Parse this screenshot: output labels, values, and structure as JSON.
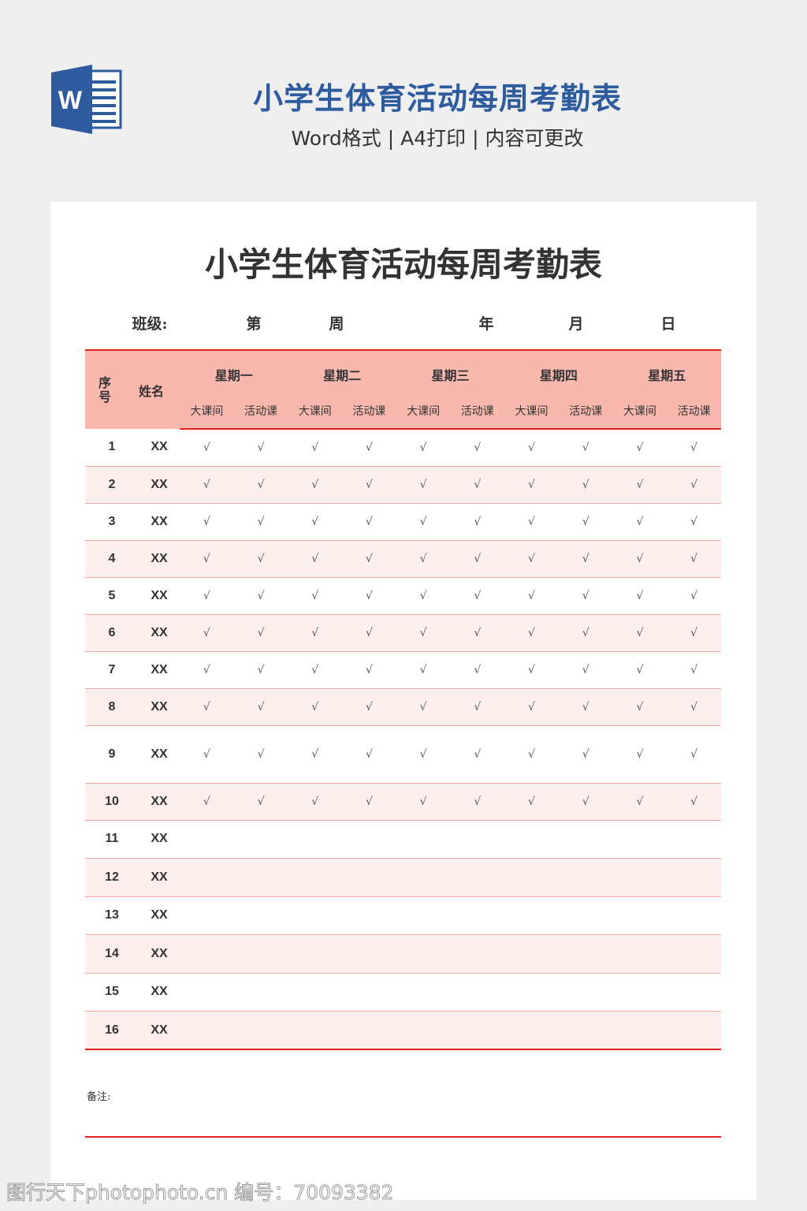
{
  "header": {
    "title": "小学生体育活动每周考勤表",
    "subtitle": "Word格式 | A4打印 | 内容可更改",
    "logo_letter": "W",
    "logo_color": "#2e5a9e"
  },
  "document": {
    "title": "小学生体育活动每周考勤表",
    "info": {
      "class_label": "班级:",
      "week_prefix": "第",
      "week_suffix": "周",
      "year": "年",
      "month": "月",
      "day": "日"
    },
    "columns": {
      "no": "序号",
      "name": "姓名",
      "days": [
        "星期一",
        "星期二",
        "星期三",
        "星期四",
        "星期五"
      ],
      "sub": [
        "大课间",
        "活动课"
      ]
    },
    "rows": [
      {
        "no": "1",
        "name": "XX",
        "checks": [
          "√",
          "√",
          "√",
          "√",
          "√",
          "√",
          "√",
          "√",
          "√",
          "√"
        ]
      },
      {
        "no": "2",
        "name": "XX",
        "checks": [
          "√",
          "√",
          "√",
          "√",
          "√",
          "√",
          "√",
          "√",
          "√",
          "√"
        ]
      },
      {
        "no": "3",
        "name": "XX",
        "checks": [
          "√",
          "√",
          "√",
          "√",
          "√",
          "√",
          "√",
          "√",
          "√",
          "√"
        ]
      },
      {
        "no": "4",
        "name": "XX",
        "checks": [
          "√",
          "√",
          "√",
          "√",
          "√",
          "√",
          "√",
          "√",
          "√",
          "√"
        ]
      },
      {
        "no": "5",
        "name": "XX",
        "checks": [
          "√",
          "√",
          "√",
          "√",
          "√",
          "√",
          "√",
          "√",
          "√",
          "√"
        ]
      },
      {
        "no": "6",
        "name": "XX",
        "checks": [
          "√",
          "√",
          "√",
          "√",
          "√",
          "√",
          "√",
          "√",
          "√",
          "√"
        ]
      },
      {
        "no": "7",
        "name": "XX",
        "checks": [
          "√",
          "√",
          "√",
          "√",
          "√",
          "√",
          "√",
          "√",
          "√",
          "√"
        ]
      },
      {
        "no": "8",
        "name": "XX",
        "checks": [
          "√",
          "√",
          "√",
          "√",
          "√",
          "√",
          "√",
          "√",
          "√",
          "√"
        ]
      },
      {
        "no": "9",
        "name": "XX",
        "checks": [
          "√",
          "√",
          "√",
          "√",
          "√",
          "√",
          "√",
          "√",
          "√",
          "√"
        ]
      },
      {
        "no": "10",
        "name": "XX",
        "checks": [
          "√",
          "√",
          "√",
          "√",
          "√",
          "√",
          "√",
          "√",
          "√",
          "√"
        ]
      },
      {
        "no": "11",
        "name": "XX",
        "checks": [
          "",
          "",
          "",
          "",
          "",
          "",
          "",
          "",
          "",
          ""
        ]
      },
      {
        "no": "12",
        "name": "XX",
        "checks": [
          "",
          "",
          "",
          "",
          "",
          "",
          "",
          "",
          "",
          ""
        ]
      },
      {
        "no": "13",
        "name": "XX",
        "checks": [
          "",
          "",
          "",
          "",
          "",
          "",
          "",
          "",
          "",
          ""
        ]
      },
      {
        "no": "14",
        "name": "XX",
        "checks": [
          "",
          "",
          "",
          "",
          "",
          "",
          "",
          "",
          "",
          ""
        ]
      },
      {
        "no": "15",
        "name": "XX",
        "checks": [
          "",
          "",
          "",
          "",
          "",
          "",
          "",
          "",
          "",
          ""
        ]
      },
      {
        "no": "16",
        "name": "XX",
        "checks": [
          "",
          "",
          "",
          "",
          "",
          "",
          "",
          "",
          "",
          ""
        ]
      }
    ],
    "note_label": "备注:",
    "accent_color": "#e0231c",
    "header_bg": "#f8b8ae"
  },
  "watermark": "图行天下photophoto.cn 编号：70093382"
}
